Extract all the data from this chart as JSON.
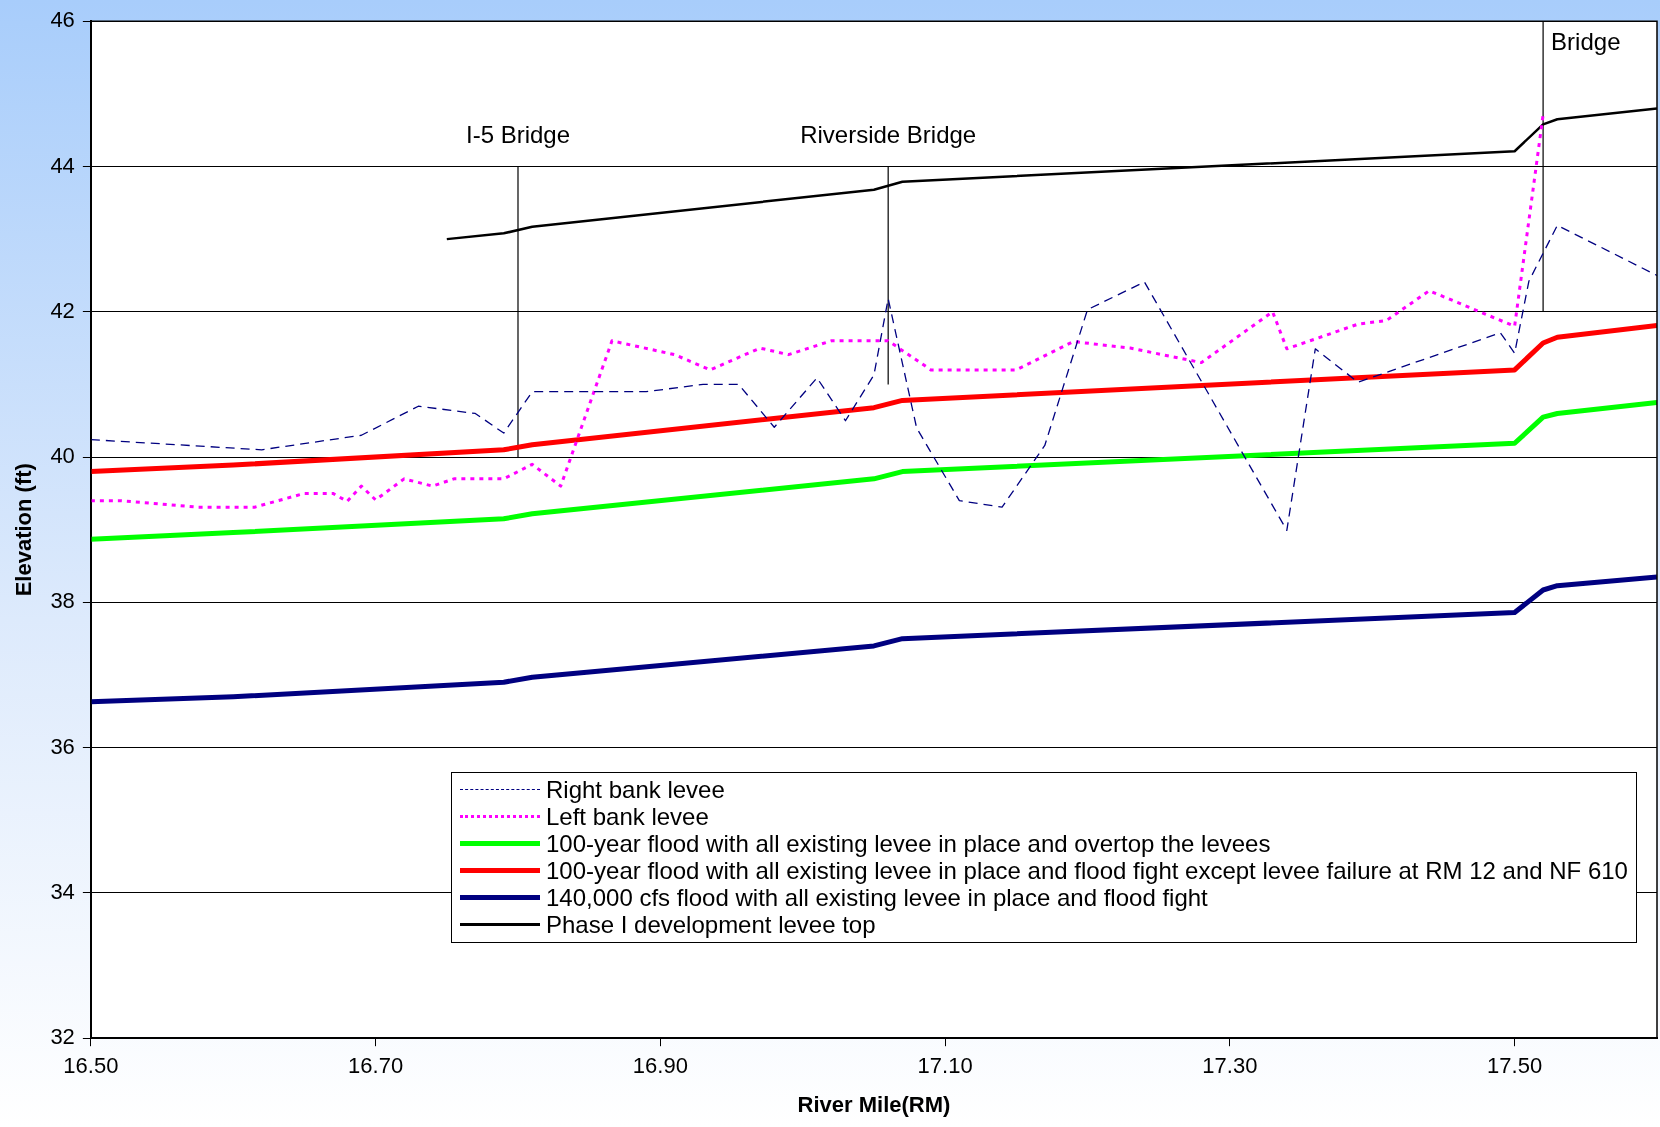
{
  "chart_data": {
    "type": "line",
    "xlabel": "River Mile(RM)",
    "ylabel": "Elevation (ft)",
    "xlim": [
      16.5,
      17.6
    ],
    "xticks": [
      {
        "value": 16.5,
        "label": "16.50"
      },
      {
        "value": 16.7,
        "label": "16.70"
      },
      {
        "value": 16.9,
        "label": "16.90"
      },
      {
        "value": 17.1,
        "label": "17.10"
      },
      {
        "value": 17.3,
        "label": "17.30"
      },
      {
        "value": 17.5,
        "label": "17.50"
      }
    ],
    "ylim": [
      32,
      46
    ],
    "yticks": [
      32,
      34,
      36,
      38,
      40,
      42,
      44,
      46
    ],
    "grid": "y",
    "legend": "bottom",
    "marker": "none",
    "series": [
      {
        "name": "Right bank levee",
        "color": "#000080",
        "line_style": "dashed",
        "x": [
          16.5,
          16.62,
          16.69,
          16.73,
          16.77,
          16.79,
          16.81,
          16.89,
          16.93,
          16.955,
          16.98,
          17.01,
          17.03,
          17.05,
          17.06,
          17.08,
          17.11,
          17.14,
          17.17,
          17.2,
          17.24,
          17.34,
          17.36,
          17.39,
          17.49,
          17.5,
          17.51,
          17.53,
          17.6
        ],
        "values": [
          40.24,
          40.1,
          40.3,
          40.7,
          40.6,
          40.33,
          40.9,
          40.9,
          41.0,
          41.0,
          40.41,
          41.09,
          40.5,
          41.13,
          42.18,
          40.4,
          39.4,
          39.31,
          40.16,
          42.03,
          42.41,
          38.99,
          41.49,
          41.03,
          41.71,
          41.43,
          42.42,
          43.19,
          42.5
        ]
      },
      {
        "name": "Left bank levee",
        "color": "#ff00ff",
        "line_style": "dotted",
        "x": [
          16.5,
          16.52,
          16.575,
          16.615,
          16.65,
          16.67,
          16.68,
          16.69,
          16.7,
          16.72,
          16.74,
          16.755,
          16.79,
          16.81,
          16.83,
          16.866,
          16.91,
          16.935,
          16.97,
          16.99,
          17.02,
          17.06,
          17.09,
          17.15,
          17.19,
          17.23,
          17.28,
          17.33,
          17.34,
          17.39,
          17.41,
          17.44,
          17.5,
          17.52
        ],
        "values": [
          39.4,
          39.4,
          39.31,
          39.31,
          39.5,
          39.5,
          39.39,
          39.6,
          39.41,
          39.7,
          39.6,
          39.7,
          39.7,
          39.9,
          39.6,
          41.6,
          41.41,
          41.2,
          41.5,
          41.41,
          41.6,
          41.6,
          41.2,
          41.2,
          41.59,
          41.5,
          41.3,
          42.0,
          41.49,
          41.83,
          41.88,
          42.29,
          41.8,
          44.71
        ]
      },
      {
        "name": "100-year flood with all existing levee in place and overtop the levees",
        "color": "#00ff00",
        "line_style": "solid",
        "x": [
          16.5,
          16.6,
          16.79,
          16.81,
          17.05,
          17.07,
          17.5,
          17.52,
          17.53,
          17.6
        ],
        "values": [
          38.87,
          38.96,
          39.15,
          39.22,
          39.7,
          39.8,
          40.19,
          40.55,
          40.6,
          40.75
        ]
      },
      {
        "name": "100-year flood with all existing levee in place and flood fight except levee failure at RM 12 and NF 610",
        "color": "#ff0000",
        "line_style": "solid",
        "x": [
          16.5,
          16.6,
          16.79,
          16.81,
          17.05,
          17.07,
          17.5,
          17.52,
          17.53,
          17.6
        ],
        "values": [
          39.8,
          39.89,
          40.1,
          40.17,
          40.68,
          40.78,
          41.2,
          41.57,
          41.65,
          41.81
        ]
      },
      {
        "name": "140,000 cfs flood with all existing levee in place and flood fight",
        "color": "#000080",
        "line_style": "solid",
        "x": [
          16.5,
          16.6,
          16.79,
          16.81,
          17.05,
          17.07,
          17.5,
          17.52,
          17.53,
          17.6
        ],
        "values": [
          36.63,
          36.7,
          36.9,
          36.97,
          37.4,
          37.5,
          37.86,
          38.17,
          38.23,
          38.35
        ]
      },
      {
        "name": "Phase I development levee top",
        "color": "#000000",
        "line_style": "solid",
        "x": [
          16.75,
          16.79,
          16.81,
          17.05,
          17.07,
          17.5,
          17.52,
          17.53,
          17.6
        ],
        "values": [
          43.0,
          43.08,
          43.17,
          43.68,
          43.79,
          44.21,
          44.58,
          44.65,
          44.8
        ]
      },
      {
        "color": "#000000",
        "line_style": "solid",
        "x": [
          16.8,
          16.8
        ],
        "values": [
          40,
          44
        ]
      },
      {
        "color": "#000000",
        "line_style": "solid",
        "x": [
          17.06,
          17.06
        ],
        "values": [
          41,
          44
        ]
      },
      {
        "color": "#000000",
        "line_style": "solid",
        "x": [
          17.52,
          17.52
        ],
        "values": [
          42,
          46
        ]
      }
    ],
    "annotations": [
      {
        "text": "I-5 Bridge",
        "x": 16.8,
        "y": 44
      },
      {
        "text": "Riverside Bridge",
        "x": 17.06,
        "y": 44
      },
      {
        "text": "Bridge",
        "x": 17.52,
        "y": 46
      }
    ]
  }
}
